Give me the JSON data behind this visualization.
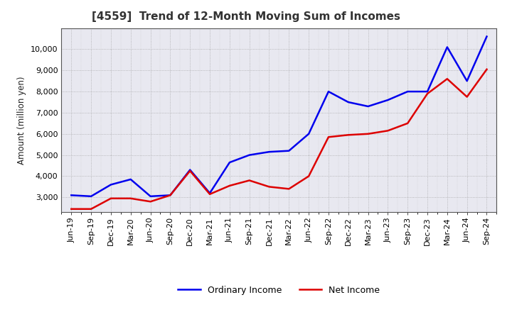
{
  "title": "[4559]  Trend of 12-Month Moving Sum of Incomes",
  "ylabel": "Amount (million yen)",
  "labels": [
    "Jun-19",
    "Sep-19",
    "Dec-19",
    "Mar-20",
    "Jun-20",
    "Sep-20",
    "Dec-20",
    "Mar-21",
    "Jun-21",
    "Sep-21",
    "Dec-21",
    "Mar-22",
    "Jun-22",
    "Sep-22",
    "Dec-22",
    "Mar-23",
    "Jun-23",
    "Sep-23",
    "Dec-23",
    "Mar-24",
    "Jun-24",
    "Sep-24"
  ],
  "ordinary_income": [
    3100,
    3050,
    3600,
    3850,
    3050,
    3100,
    4300,
    3200,
    4650,
    5000,
    5150,
    5200,
    6000,
    8000,
    7500,
    7300,
    7600,
    8000,
    8000,
    10100,
    8500,
    10600
  ],
  "net_income": [
    2450,
    2450,
    2950,
    2950,
    2800,
    3100,
    4250,
    3150,
    3550,
    3800,
    3500,
    3400,
    4000,
    5850,
    5950,
    6000,
    6150,
    6500,
    7900,
    8600,
    7750,
    9050
  ],
  "ordinary_income_color": "#0000ee",
  "net_income_color": "#dd0000",
  "background_color": "#ffffff",
  "plot_bg_color": "#e8e8f0",
  "grid_color": "#999999",
  "ylim": [
    2300,
    11000
  ],
  "yticks": [
    3000,
    4000,
    5000,
    6000,
    7000,
    8000,
    9000,
    10000
  ],
  "legend_labels": [
    "Ordinary Income",
    "Net Income"
  ],
  "line_width": 1.8,
  "title_color": "#333333",
  "title_fontsize": 11,
  "ylabel_fontsize": 8.5,
  "tick_fontsize": 8
}
